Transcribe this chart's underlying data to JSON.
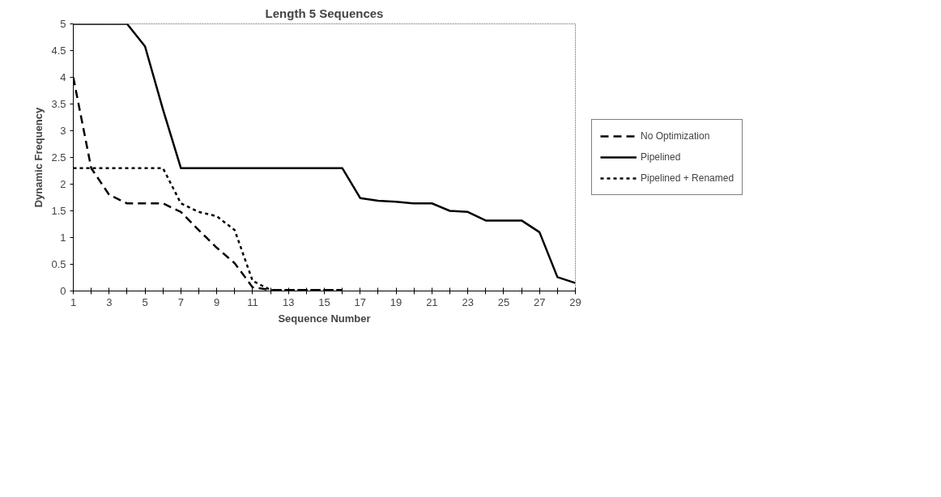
{
  "chart_data": {
    "type": "line",
    "title": "Length 5 Sequences",
    "xlabel": "Sequence Number",
    "ylabel": "Dynamic Frequency",
    "x": [
      1,
      2,
      3,
      4,
      5,
      6,
      7,
      8,
      9,
      10,
      11,
      12,
      13,
      14,
      15,
      16,
      17,
      18,
      19,
      20,
      21,
      22,
      23,
      24,
      25,
      26,
      27,
      28,
      29
    ],
    "series": [
      {
        "name": "No Optimization",
        "color": "#000000",
        "line_style": "dashed",
        "values": [
          4,
          2.3,
          1.8,
          1.64,
          1.64,
          1.64,
          1.48,
          1.14,
          0.81,
          0.52,
          0.07,
          0.02,
          0.02,
          0.02,
          0.02,
          0.02,
          null,
          null,
          null,
          null,
          null,
          null,
          null,
          null,
          null,
          null,
          null,
          null,
          null
        ]
      },
      {
        "name": "Pipelined",
        "color": "#000000",
        "line_style": "solid",
        "values": [
          5,
          5,
          5,
          5,
          4.58,
          3.4,
          2.3,
          2.3,
          2.3,
          2.3,
          2.3,
          2.3,
          2.3,
          2.3,
          2.3,
          2.3,
          1.74,
          1.69,
          1.67,
          1.64,
          1.64,
          1.5,
          1.48,
          1.32,
          1.32,
          1.32,
          1.1,
          0.26,
          0.15
        ]
      },
      {
        "name": "Pipelined + Renamed",
        "color": "#000000",
        "line_style": "dotted",
        "values": [
          2.3,
          2.3,
          2.3,
          2.3,
          2.3,
          2.3,
          1.64,
          1.48,
          1.4,
          1.14,
          0.19,
          0.02,
          0.02,
          0.02,
          0.02,
          0.02,
          null,
          null,
          null,
          null,
          null,
          null,
          null,
          null,
          null,
          null,
          null,
          null,
          null
        ]
      }
    ],
    "xlim": [
      1,
      29
    ],
    "ylim": [
      0,
      5
    ],
    "xticks": [
      1,
      {
        "value": 2,
        "label": null
      },
      3,
      {
        "value": 4,
        "label": null
      },
      5,
      {
        "value": 6,
        "label": null
      },
      7,
      {
        "value": 8,
        "label": null
      },
      9,
      {
        "value": 10,
        "label": null
      },
      11,
      {
        "value": 12,
        "label": null
      },
      13,
      {
        "value": 14,
        "label": null
      },
      15,
      {
        "value": 16,
        "label": null
      },
      17,
      {
        "value": 18,
        "label": null
      },
      19,
      {
        "value": 20,
        "label": null
      },
      21,
      {
        "value": 22,
        "label": null
      },
      23,
      {
        "value": 24,
        "label": null
      },
      25,
      {
        "value": 26,
        "label": null
      },
      27,
      {
        "value": 28,
        "label": null
      },
      29
    ],
    "yticks": [
      0,
      0.5,
      1,
      1.5,
      2,
      2.5,
      3,
      3.5,
      4,
      4.5,
      5
    ],
    "grid": false,
    "legend": "right",
    "marker": "none"
  }
}
